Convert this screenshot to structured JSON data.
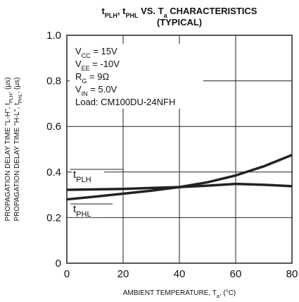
{
  "chart_data": {
    "type": "line",
    "title": [
      [
        {
          "text": "t"
        },
        {
          "text": "PLH",
          "sub": true
        },
        {
          "text": ", t"
        },
        {
          "text": "PHL",
          "sub": true
        },
        {
          "text": " VS. T"
        },
        {
          "text": "a",
          "sub": true
        },
        {
          "text": " CHARACTERISTICS"
        }
      ],
      [
        {
          "text": "(TYPICAL)"
        }
      ]
    ],
    "x_label": [
      {
        "text": "AMBIENT TEMPERATURE, T"
      },
      {
        "text": "a",
        "sub": true
      },
      {
        "text": ", (°C)"
      }
    ],
    "y_label": [
      [
        {
          "text": "PROPAGATION DELAY TIME \"L-H\", t"
        },
        {
          "text": "PLH",
          "sub": true
        },
        {
          "text": ", (μs)"
        }
      ],
      [
        {
          "text": "PROPAGATION DELAY TIME \"H-L\", t"
        },
        {
          "text": "PHL",
          "sub": true
        },
        {
          "text": ", (μs)"
        }
      ]
    ],
    "annotations": [
      [
        {
          "text": "V"
        },
        {
          "text": "CC",
          "sub": true
        },
        {
          "text": " = 15V"
        }
      ],
      [
        {
          "text": "V"
        },
        {
          "text": "EE",
          "sub": true
        },
        {
          "text": " = -10V"
        }
      ],
      [
        {
          "text": "R"
        },
        {
          "text": "G",
          "sub": true
        },
        {
          "text": " = 9Ω"
        }
      ],
      [
        {
          "text": "V"
        },
        {
          "text": "IN",
          "sub": true
        },
        {
          "text": " = 5.0V"
        }
      ],
      [
        {
          "text": "Load: CM100DU-24NFH"
        }
      ]
    ],
    "x": [
      0,
      10,
      20,
      30,
      40,
      50,
      60,
      70,
      80
    ],
    "series": [
      {
        "name": [
          {
            "text": "t"
          },
          {
            "text": "PLH",
            "sub": true
          }
        ],
        "color": "#222222",
        "values": [
          0.322,
          0.324,
          0.326,
          0.33,
          0.334,
          0.34,
          0.348,
          0.344,
          0.338
        ]
      },
      {
        "name": [
          {
            "text": "t"
          },
          {
            "text": "PHL",
            "sub": true
          }
        ],
        "color": "#222222",
        "values": [
          0.28,
          0.292,
          0.305,
          0.318,
          0.334,
          0.355,
          0.385,
          0.425,
          0.475
        ]
      }
    ],
    "xlim": [
      0,
      80
    ],
    "xticks": [
      0,
      20,
      40,
      60,
      80
    ],
    "ylim": [
      0,
      1
    ],
    "yticks": [
      0,
      0.2,
      0.4,
      0.6,
      0.8,
      {
        "value": 1,
        "label": "1.0"
      }
    ],
    "grid": true
  }
}
